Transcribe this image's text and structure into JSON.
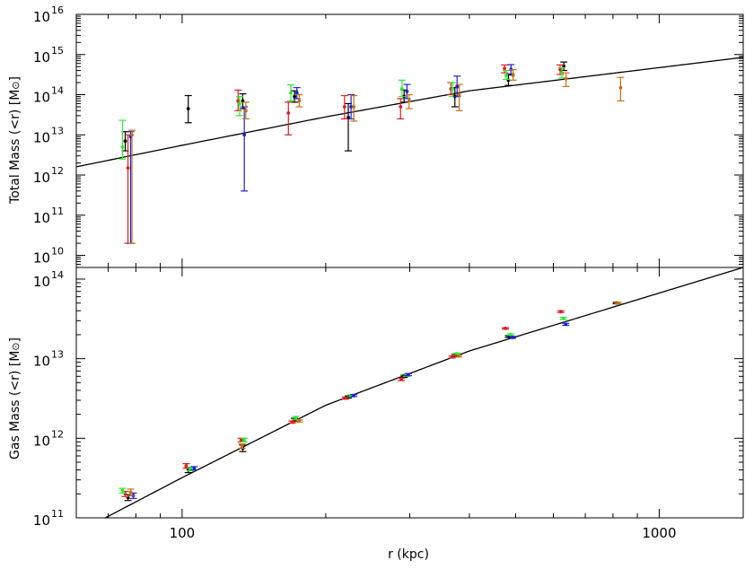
{
  "chart_data": [
    {
      "type": "scatter",
      "panel": "top",
      "ylabel": "Total Mass (<r) [M",
      "ylabel_symbol": "⊙",
      "ylabel_close": "]",
      "xscale": "log",
      "yscale": "log",
      "xlim": [
        60,
        1500
      ],
      "ylim": [
        5000000000.0,
        1e+16
      ],
      "yticks": [
        {
          "base": "10",
          "exp": "10",
          "value": 10000000000.0
        },
        {
          "base": "10",
          "exp": "11",
          "value": 100000000000.0
        },
        {
          "base": "10",
          "exp": "12",
          "value": 1000000000000.0
        },
        {
          "base": "10",
          "exp": "13",
          "value": 10000000000000.0
        },
        {
          "base": "10",
          "exp": "14",
          "value": 100000000000000.0
        },
        {
          "base": "10",
          "exp": "15",
          "value": 1000000000000000.0
        },
        {
          "base": "10",
          "exp": "16",
          "value": 1e+16
        }
      ],
      "model_curve": {
        "anchors_x": [
          60,
          100,
          200,
          400,
          1500
        ],
        "anchors_y": [
          1600000000000.0,
          5500000000000.0,
          28000000000000.0,
          125000000000000.0,
          850000000000000.0
        ]
      },
      "series": [
        {
          "color": "#000000",
          "points": [
            {
              "x": 76,
              "y": 7000000000000.0,
              "lo": 4000000000000.0,
              "hi": 12000000000000.0
            },
            {
              "x": 103,
              "y": 45000000000000.0,
              "lo": 20000000000000.0,
              "hi": 95000000000000.0
            },
            {
              "x": 134,
              "y": 70000000000000.0,
              "lo": 45000000000000.0,
              "hi": 105000000000000.0
            },
            {
              "x": 172,
              "y": 90000000000000.0,
              "lo": 65000000000000.0,
              "hi": 125000000000000.0
            },
            {
              "x": 223,
              "y": 27000000000000.0,
              "lo": 4000000000000.0,
              "hi": 60000000000000.0
            },
            {
              "x": 292,
              "y": 90000000000000.0,
              "lo": 65000000000000.0,
              "hi": 130000000000000.0
            },
            {
              "x": 373,
              "y": 90000000000000.0,
              "lo": 50000000000000.0,
              "hi": 150000000000000.0
            },
            {
              "x": 483,
              "y": 230000000000000.0,
              "lo": 170000000000000.0,
              "hi": 310000000000000.0
            },
            {
              "x": 631,
              "y": 520000000000000.0,
              "lo": 400000000000000.0,
              "hi": 650000000000000.0
            }
          ]
        },
        {
          "color": "#e41a1c",
          "points": [
            {
              "x": 77,
              "y": 1500000000000.0,
              "lo": 20000000000.0,
              "hi": 10000000000000.0
            },
            {
              "x": 131,
              "y": 70000000000000.0,
              "lo": 40000000000000.0,
              "hi": 130000000000000.0
            },
            {
              "x": 167,
              "y": 35000000000000.0,
              "lo": 10000000000000.0,
              "hi": 65000000000000.0
            },
            {
              "x": 219,
              "y": 50000000000000.0,
              "lo": 25000000000000.0,
              "hi": 95000000000000.0
            },
            {
              "x": 287,
              "y": 50000000000000.0,
              "lo": 25000000000000.0,
              "hi": 80000000000000.0
            },
            {
              "x": 366,
              "y": 140000000000000.0,
              "lo": 100000000000000.0,
              "hi": 200000000000000.0
            },
            {
              "x": 474,
              "y": 450000000000000.0,
              "lo": 350000000000000.0,
              "hi": 550000000000000.0
            },
            {
              "x": 620,
              "y": 420000000000000.0,
              "lo": 320000000000000.0,
              "hi": 550000000000000.0
            }
          ]
        },
        {
          "color": "#2ee82e",
          "points": [
            {
              "x": 75,
              "y": 5000000000000.0,
              "lo": 2500000000000.0,
              "hi": 23000000000000.0
            },
            {
              "x": 132,
              "y": 60000000000000.0,
              "lo": 30000000000000.0,
              "hi": 90000000000000.0
            },
            {
              "x": 169,
              "y": 110000000000000.0,
              "lo": 70000000000000.0,
              "hi": 175000000000000.0
            },
            {
              "x": 289,
              "y": 140000000000000.0,
              "lo": 90000000000000.0,
              "hi": 230000000000000.0
            },
            {
              "x": 369,
              "y": 140000000000000.0,
              "lo": 90000000000000.0,
              "hi": 200000000000000.0
            },
            {
              "x": 478,
              "y": 300000000000000.0,
              "lo": 240000000000000.0,
              "hi": 400000000000000.0
            },
            {
              "x": 625,
              "y": 350000000000000.0,
              "lo": 260000000000000.0,
              "hi": 470000000000000.0
            }
          ]
        },
        {
          "color": "#1f1fd6",
          "points": [
            {
              "x": 78,
              "y": 9000000000000.0,
              "lo": 20000000000.0,
              "hi": 12000000000000.0
            },
            {
              "x": 135,
              "y": 10000000000000.0,
              "lo": 400000000000.0,
              "hi": 50000000000000.0
            },
            {
              "x": 174,
              "y": 110000000000000.0,
              "lo": 80000000000000.0,
              "hi": 150000000000000.0
            },
            {
              "x": 226,
              "y": 50000000000000.0,
              "lo": 25000000000000.0,
              "hi": 100000000000000.0
            },
            {
              "x": 296,
              "y": 120000000000000.0,
              "lo": 80000000000000.0,
              "hi": 180000000000000.0
            },
            {
              "x": 377,
              "y": 160000000000000.0,
              "lo": 90000000000000.0,
              "hi": 290000000000000.0
            },
            {
              "x": 489,
              "y": 430000000000000.0,
              "lo": 330000000000000.0,
              "hi": 560000000000000.0
            }
          ]
        },
        {
          "color": "#c87010",
          "points": [
            {
              "x": 78.5,
              "y": 10000000000000.0,
              "lo": 20000000000.0,
              "hi": 13000000000000.0
            },
            {
              "x": 136,
              "y": 40000000000000.0,
              "lo": 25000000000000.0,
              "hi": 65000000000000.0
            },
            {
              "x": 176,
              "y": 70000000000000.0,
              "lo": 50000000000000.0,
              "hi": 100000000000000.0
            },
            {
              "x": 229,
              "y": 50000000000000.0,
              "lo": 22000000000000.0,
              "hi": 95000000000000.0
            },
            {
              "x": 299,
              "y": 70000000000000.0,
              "lo": 45000000000000.0,
              "hi": 100000000000000.0
            },
            {
              "x": 381,
              "y": 100000000000000.0,
              "lo": 40000000000000.0,
              "hi": 180000000000000.0
            },
            {
              "x": 494,
              "y": 300000000000000.0,
              "lo": 230000000000000.0,
              "hi": 420000000000000.0
            },
            {
              "x": 638,
              "y": 250000000000000.0,
              "lo": 160000000000000.0,
              "hi": 350000000000000.0
            },
            {
              "x": 830,
              "y": 150000000000000.0,
              "lo": 70000000000000.0,
              "hi": 270000000000000.0
            }
          ]
        }
      ]
    },
    {
      "type": "scatter",
      "panel": "bottom",
      "xlabel": "r (kpc)",
      "ylabel": "Gas Mass (<r) [M",
      "ylabel_symbol": "⊙",
      "ylabel_close": "]",
      "xscale": "log",
      "yscale": "log",
      "xlim": [
        60,
        1500
      ],
      "ylim": [
        100000000000.0,
        140000000000000.0
      ],
      "xticks": [
        {
          "label": "100",
          "value": 100
        },
        {
          "label": "1000",
          "value": 1000
        }
      ],
      "yticks": [
        {
          "base": "10",
          "exp": "11",
          "value": 100000000000.0
        },
        {
          "base": "10",
          "exp": "12",
          "value": 1000000000000.0
        },
        {
          "base": "10",
          "exp": "13",
          "value": 10000000000000.0
        },
        {
          "base": "10",
          "exp": "14",
          "value": 100000000000000.0
        }
      ],
      "model_curve": {
        "anchors_x": [
          69,
          100,
          200,
          400,
          1500
        ],
        "anchors_y": [
          100000000000.0,
          320000000000.0,
          2600000000000.0,
          12500000000000.0,
          140000000000000.0
        ]
      },
      "series": [
        {
          "color": "#000000",
          "points": [
            {
              "x": 77,
              "y": 180000000000.0,
              "lo": 165000000000.0,
              "hi": 195000000000.0
            },
            {
              "x": 103,
              "y": 400000000000.0,
              "lo": 370000000000.0,
              "hi": 430000000000.0
            },
            {
              "x": 134,
              "y": 750000000000.0,
              "lo": 680000000000.0,
              "hi": 820000000000.0
            },
            {
              "x": 172,
              "y": 1700000000000.0,
              "lo": 1620000000000.0,
              "hi": 1780000000000.0
            },
            {
              "x": 223,
              "y": 3300000000000.0,
              "lo": 3200000000000.0,
              "hi": 3400000000000.0
            },
            {
              "x": 292,
              "y": 6000000000000.0,
              "lo": 5800000000000.0,
              "hi": 6200000000000.0
            },
            {
              "x": 373,
              "y": 11000000000000.0,
              "lo": 10700000000000.0,
              "hi": 11300000000000.0
            },
            {
              "x": 483,
              "y": 19000000000000.0,
              "lo": 18500000000000.0,
              "hi": 19500000000000.0
            },
            {
              "x": 813,
              "y": 50000000000000.0,
              "lo": 49000000000000.0,
              "hi": 51000000000000.0
            }
          ]
        },
        {
          "color": "#e41a1c",
          "points": [
            {
              "x": 76,
              "y": 200000000000.0,
              "lo": 185000000000.0,
              "hi": 215000000000.0
            },
            {
              "x": 102,
              "y": 450000000000.0,
              "lo": 420000000000.0,
              "hi": 480000000000.0
            },
            {
              "x": 133,
              "y": 950000000000.0,
              "lo": 900000000000.0,
              "hi": 1000000000000.0
            },
            {
              "x": 170,
              "y": 1600000000000.0,
              "lo": 1550000000000.0,
              "hi": 1650000000000.0
            },
            {
              "x": 220,
              "y": 3200000000000.0,
              "lo": 3100000000000.0,
              "hi": 3300000000000.0
            },
            {
              "x": 288,
              "y": 5500000000000.0,
              "lo": 5300000000000.0,
              "hi": 5700000000000.0
            },
            {
              "x": 368,
              "y": 10500000000000.0,
              "lo": 10200000000000.0,
              "hi": 10800000000000.0
            },
            {
              "x": 476,
              "y": 24000000000000.0,
              "lo": 23500000000000.0,
              "hi": 24500000000000.0
            },
            {
              "x": 622,
              "y": 39000000000000.0,
              "lo": 38000000000000.0,
              "hi": 40000000000000.0
            }
          ]
        },
        {
          "color": "#2ee82e",
          "points": [
            {
              "x": 75,
              "y": 220000000000.0,
              "lo": 205000000000.0,
              "hi": 235000000000.0
            },
            {
              "x": 104,
              "y": 410000000000.0,
              "lo": 390000000000.0,
              "hi": 430000000000.0
            },
            {
              "x": 135,
              "y": 950000000000.0,
              "lo": 900000000000.0,
              "hi": 1000000000000.0
            },
            {
              "x": 173,
              "y": 1800000000000.0,
              "lo": 1720000000000.0,
              "hi": 1880000000000.0
            },
            {
              "x": 226,
              "y": 3400000000000.0,
              "lo": 3300000000000.0,
              "hi": 3500000000000.0
            },
            {
              "x": 295,
              "y": 6200000000000.0,
              "lo": 6000000000000.0,
              "hi": 6400000000000.0
            },
            {
              "x": 377,
              "y": 11500000000000.0,
              "lo": 11200000000000.0,
              "hi": 11800000000000.0
            },
            {
              "x": 488,
              "y": 20000000000000.0,
              "lo": 19500000000000.0,
              "hi": 20500000000000.0
            },
            {
              "x": 630,
              "y": 32000000000000.0,
              "lo": 31000000000000.0,
              "hi": 33000000000000.0
            }
          ]
        },
        {
          "color": "#1f1fd6",
          "points": [
            {
              "x": 79,
              "y": 190000000000.0,
              "lo": 175000000000.0,
              "hi": 205000000000.0
            },
            {
              "x": 106,
              "y": 420000000000.0,
              "lo": 400000000000.0,
              "hi": 440000000000.0
            },
            {
              "x": 229,
              "y": 3450000000000.0,
              "lo": 3350000000000.0,
              "hi": 3550000000000.0
            },
            {
              "x": 298,
              "y": 6300000000000.0,
              "lo": 6100000000000.0,
              "hi": 6500000000000.0
            },
            {
              "x": 493,
              "y": 18500000000000.0,
              "lo": 18000000000000.0,
              "hi": 19000000000000.0
            },
            {
              "x": 637,
              "y": 27000000000000.0,
              "lo": 26200000000000.0,
              "hi": 27800000000000.0
            }
          ]
        },
        {
          "color": "#c87010",
          "points": [
            {
              "x": 78,
              "y": 210000000000.0,
              "lo": 190000000000.0,
              "hi": 230000000000.0
            },
            {
              "x": 133.5,
              "y": 800000000000.0,
              "lo": 750000000000.0,
              "hi": 850000000000.0
            },
            {
              "x": 176,
              "y": 1650000000000.0,
              "lo": 1600000000000.0,
              "hi": 1700000000000.0
            },
            {
              "x": 380,
              "y": 10800000000000.0,
              "lo": 10500000000000.0,
              "hi": 11100000000000.0
            },
            {
              "x": 820,
              "y": 50000000000000.0,
              "lo": 49000000000000.0,
              "hi": 51000000000000.0
            }
          ]
        }
      ]
    }
  ]
}
